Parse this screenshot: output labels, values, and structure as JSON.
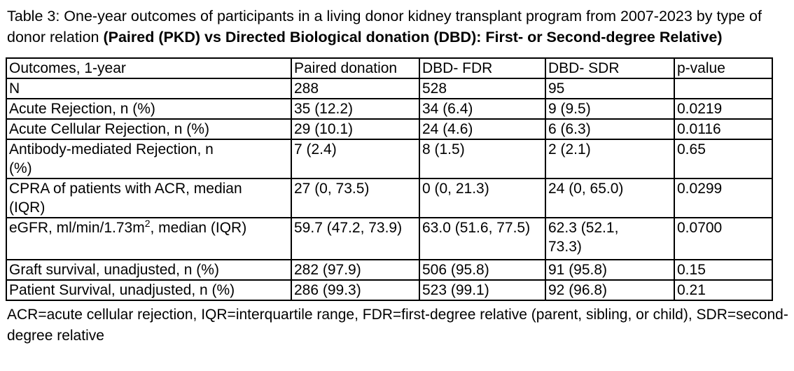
{
  "caption": {
    "normal": "Table 3: One-year outcomes of participants in a living donor kidney transplant program from 2007-2023 by type of donor relation ",
    "bold": "(Paired (PKD) vs Directed Biological donation (DBD): First- or Second-degree Relative)"
  },
  "table": {
    "headers": [
      "Outcomes, 1-year",
      "Paired donation",
      "DBD- FDR",
      "DBD- SDR",
      "p-value"
    ],
    "rows": [
      {
        "label": "N",
        "values": [
          "288",
          "528",
          "95",
          ""
        ]
      },
      {
        "label": "Acute Rejection, n (%)",
        "values": [
          "35 (12.2)",
          "34 (6.4)",
          "9 (9.5)",
          "0.0219"
        ]
      },
      {
        "label": "Acute Cellular Rejection, n (%)",
        "values": [
          "29 (10.1)",
          "24 (4.6)",
          "6 (6.3)",
          "0.0116"
        ]
      },
      {
        "label": "Antibody-mediated Rejection, n\n(%)",
        "values": [
          "7 (2.4)",
          "8 (1.5)",
          "2 (2.1)",
          "0.65"
        ]
      },
      {
        "label": "CPRA of patients with ACR, median\n(IQR)",
        "values": [
          "27 (0, 73.5)",
          "0 (0, 21.3)",
          "24 (0, 65.0)",
          "0.0299"
        ]
      },
      {
        "label_parts": {
          "pre": "eGFR, ml/min/1.73m",
          "sup": "2",
          "post": ", median (IQR)"
        },
        "values": [
          "59.7 (47.2, 73.9)",
          "63.0 (51.6, 77.5)",
          "62.3 (52.1,\n73.3)",
          "0.0700"
        ]
      },
      {
        "label": "Graft survival, unadjusted, n (%)",
        "values": [
          "282 (97.9)",
          "506 (95.8)",
          "91 (95.8)",
          "0.15"
        ]
      },
      {
        "label": "Patient Survival, unadjusted, n (%)",
        "values": [
          "286 (99.3)",
          "523 (99.1)",
          "92 (96.8)",
          "0.21"
        ]
      }
    ]
  },
  "footnote": "ACR=acute cellular rejection, IQR=interquartile range, FDR=first-degree relative (parent, sibling, or child), SDR=second-degree relative"
}
